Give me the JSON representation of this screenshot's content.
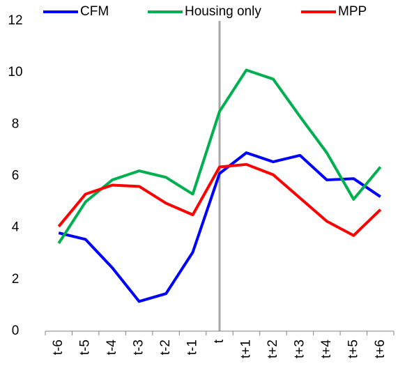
{
  "chart_data": {
    "type": "line",
    "categories": [
      "t-6",
      "t-5",
      "t-4",
      "t-3",
      "t-2",
      "t-1",
      "t",
      "t+1",
      "t+2",
      "t+3",
      "t+4",
      "t+5",
      "t+6"
    ],
    "series": [
      {
        "name": "CFM",
        "color": "#0000ff",
        "values": [
          3.8,
          3.55,
          2.45,
          1.15,
          1.45,
          3.05,
          6.1,
          6.9,
          6.55,
          6.8,
          5.85,
          5.9,
          5.2
        ]
      },
      {
        "name": "Housing only",
        "color": "#00b050",
        "values": [
          3.4,
          5.0,
          5.85,
          6.2,
          5.95,
          5.3,
          8.5,
          10.1,
          9.75,
          8.3,
          6.9,
          5.1,
          6.35
        ]
      },
      {
        "name": "MPP",
        "color": "#ff0000",
        "values": [
          4.05,
          5.3,
          5.65,
          5.6,
          4.95,
          4.5,
          6.35,
          6.45,
          6.05,
          5.15,
          4.25,
          3.7,
          4.7
        ]
      }
    ],
    "ylim": [
      0,
      12
    ],
    "yticks": [
      0,
      2,
      4,
      6,
      8,
      10,
      12
    ],
    "grid": false,
    "legend": "top"
  }
}
